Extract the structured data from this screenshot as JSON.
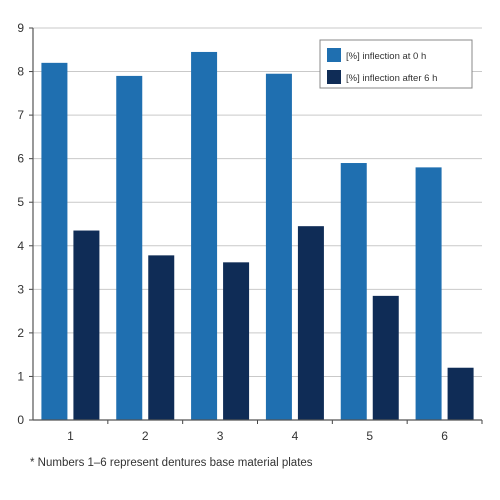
{
  "chart_data": {
    "type": "bar",
    "categories": [
      "1",
      "2",
      "3",
      "4",
      "5",
      "6"
    ],
    "series": [
      {
        "name": "[%] inflection at 0 h",
        "values": [
          8.2,
          7.9,
          8.45,
          7.95,
          5.9,
          5.8
        ],
        "color": "#1f6fb0"
      },
      {
        "name": "[%] inflection after 6 h",
        "values": [
          4.35,
          3.78,
          3.62,
          4.45,
          2.85,
          1.2
        ],
        "color": "#0f2c56"
      }
    ],
    "title": "",
    "xlabel": "",
    "ylabel": "",
    "ylim": [
      0,
      9
    ],
    "yticks": [
      "0",
      "1",
      "2",
      "3",
      "4",
      "5",
      "6",
      "7",
      "8",
      "9"
    ],
    "grid": true,
    "legend": "top-right"
  },
  "footnote": "* Numbers 1–6 represent dentures base material plates"
}
